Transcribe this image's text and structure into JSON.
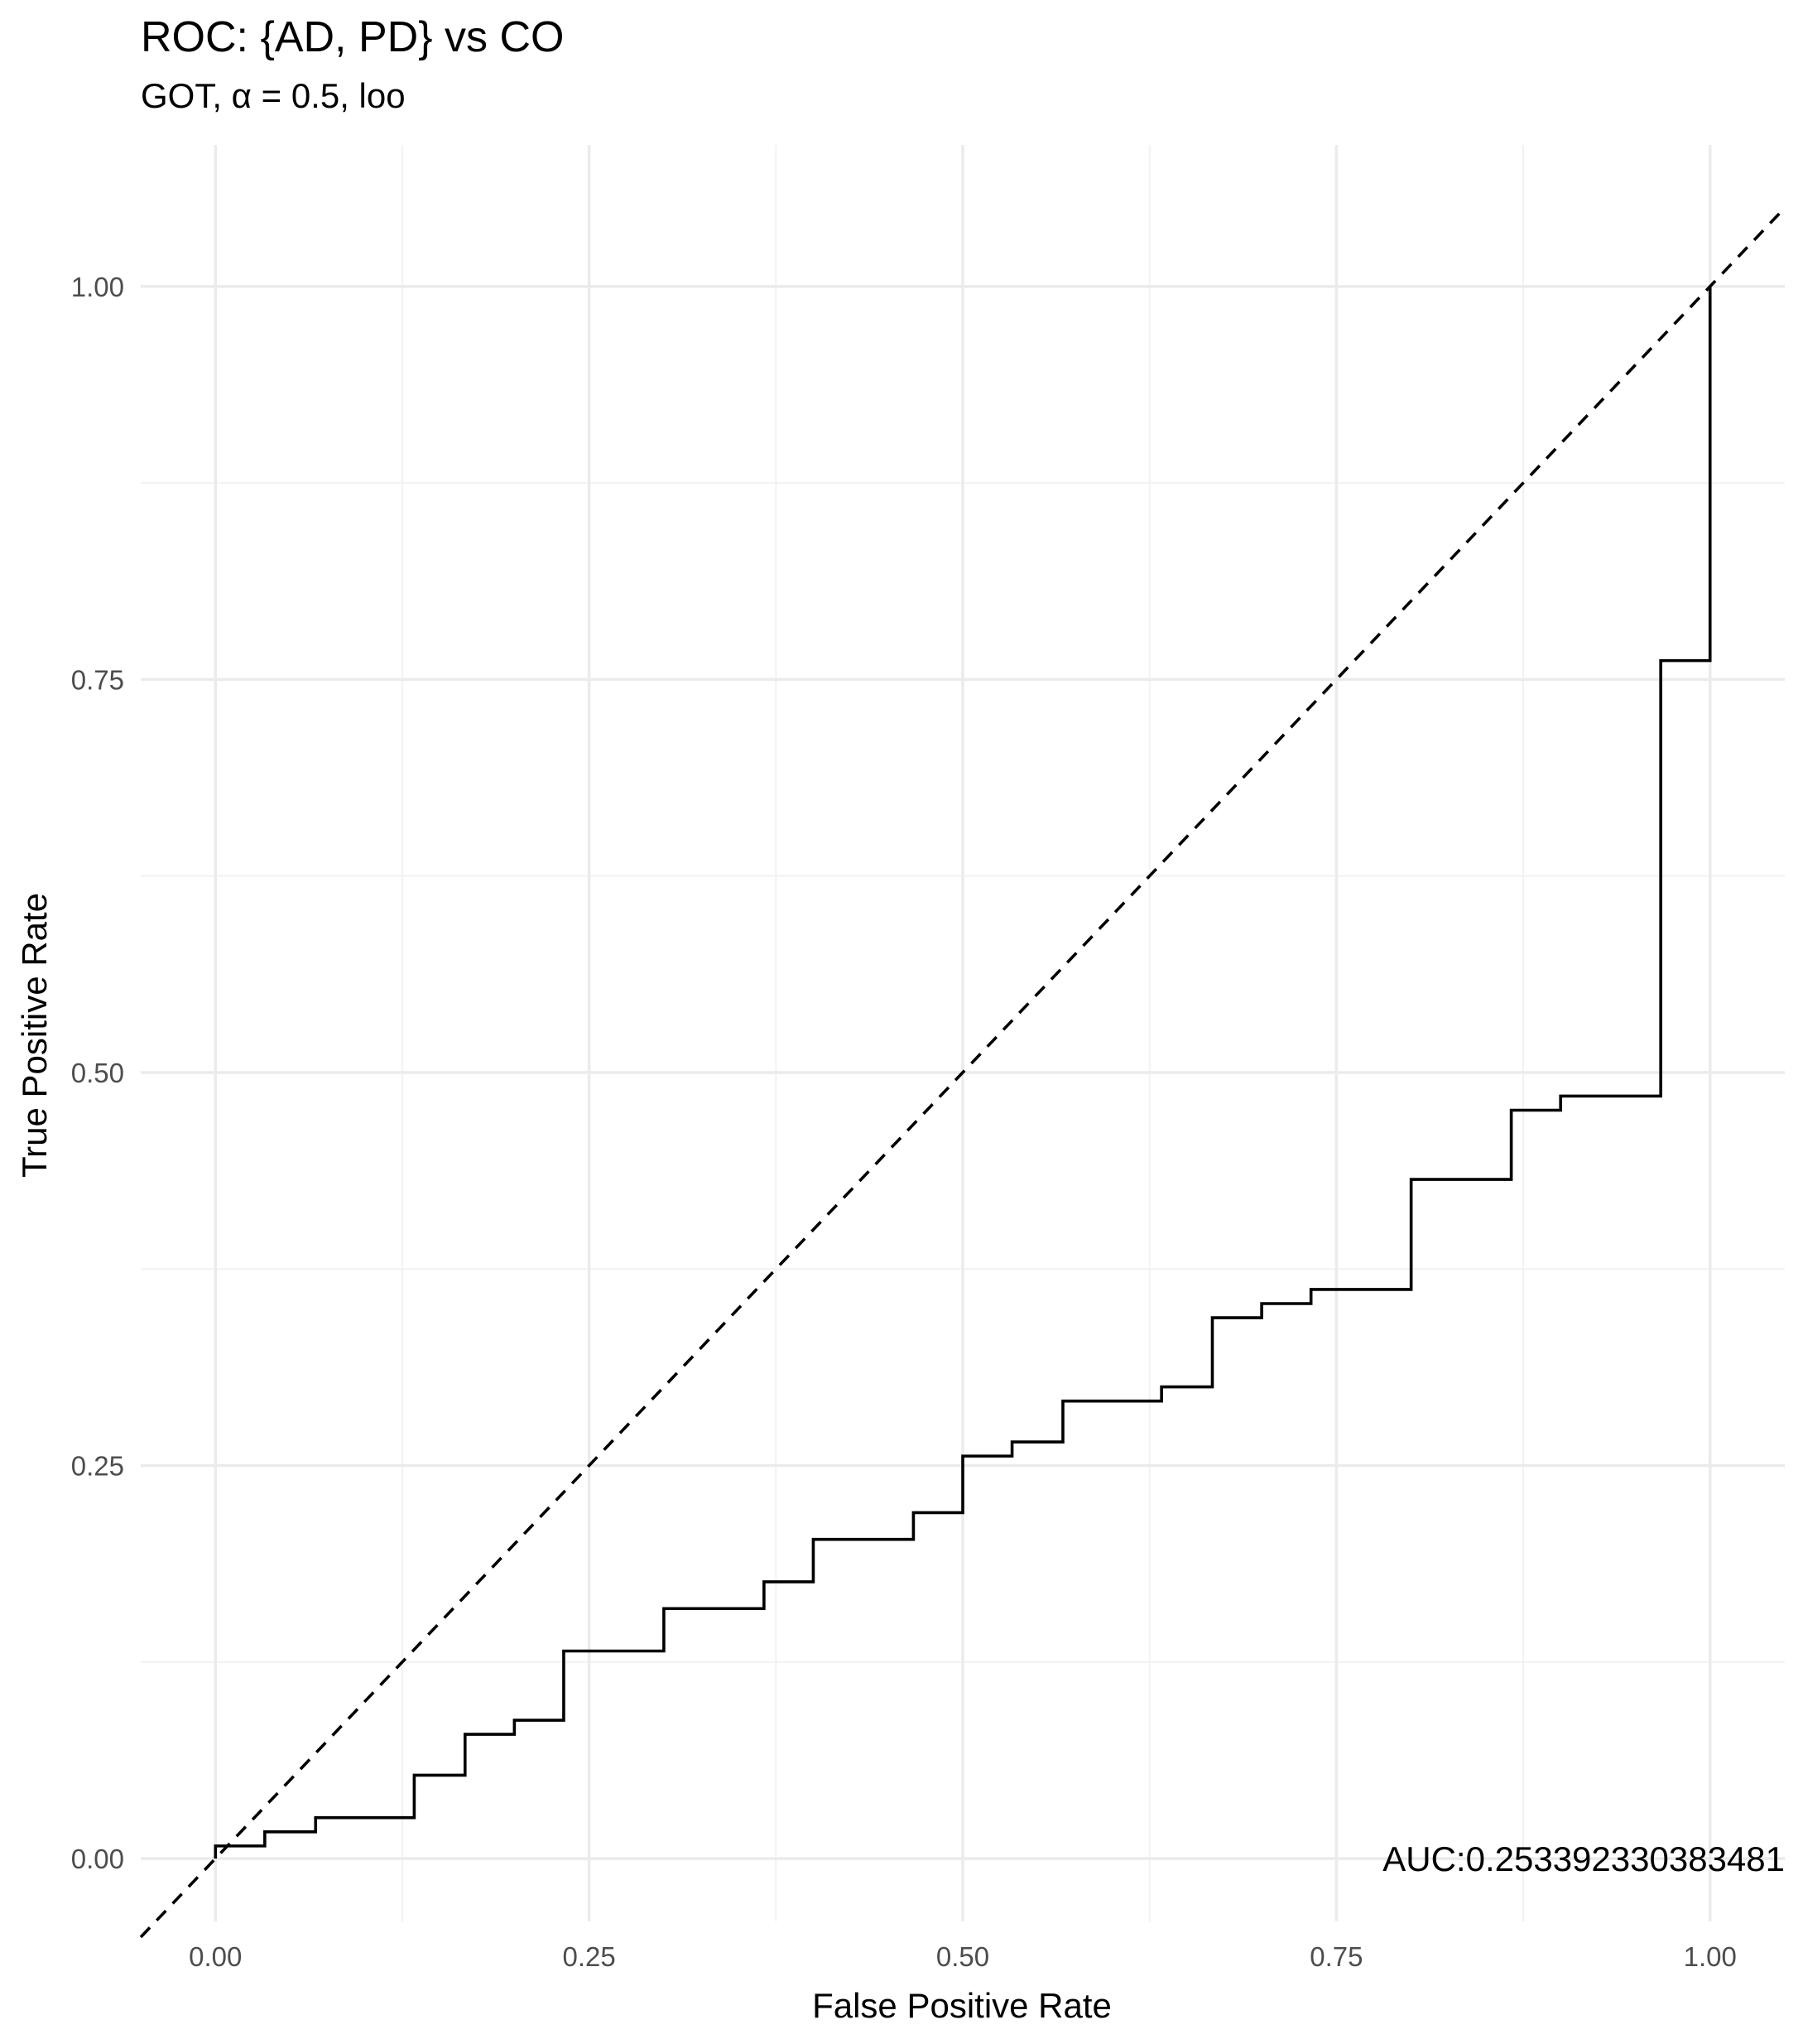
{
  "chart_data": {
    "type": "line",
    "title": "ROC: {AD, PD} vs CO",
    "subtitle": "GOT, α = 0.5, loo",
    "xlabel": "False Positive Rate",
    "ylabel": "True Positive Rate",
    "xlim": [
      -0.05,
      1.05
    ],
    "ylim": [
      -0.04,
      1.09
    ],
    "x_ticks": [
      0.0,
      0.25,
      0.5,
      0.75,
      1.0
    ],
    "y_ticks": [
      0.0,
      0.25,
      0.5,
      0.75,
      1.0
    ],
    "x_tick_labels": [
      "0.00",
      "0.25",
      "0.50",
      "0.75",
      "1.00"
    ],
    "y_tick_labels": [
      "0.00",
      "0.25",
      "0.50",
      "0.75",
      "1.00"
    ],
    "grid": true,
    "legend": "none",
    "series": [
      {
        "style": "solid",
        "color": "#000000",
        "shape": "step",
        "points": [
          [
            0.0,
            0.0
          ],
          [
            0.0,
            0.008
          ],
          [
            0.033,
            0.008
          ],
          [
            0.033,
            0.017
          ],
          [
            0.067,
            0.017
          ],
          [
            0.067,
            0.026
          ],
          [
            0.133,
            0.026
          ],
          [
            0.133,
            0.053
          ],
          [
            0.167,
            0.053
          ],
          [
            0.167,
            0.079
          ],
          [
            0.2,
            0.079
          ],
          [
            0.2,
            0.088
          ],
          [
            0.233,
            0.088
          ],
          [
            0.233,
            0.132
          ],
          [
            0.3,
            0.132
          ],
          [
            0.3,
            0.159
          ],
          [
            0.367,
            0.159
          ],
          [
            0.367,
            0.176
          ],
          [
            0.4,
            0.176
          ],
          [
            0.4,
            0.203
          ],
          [
            0.467,
            0.203
          ],
          [
            0.467,
            0.22
          ],
          [
            0.5,
            0.22
          ],
          [
            0.5,
            0.256
          ],
          [
            0.533,
            0.256
          ],
          [
            0.533,
            0.265
          ],
          [
            0.567,
            0.265
          ],
          [
            0.567,
            0.291
          ],
          [
            0.633,
            0.291
          ],
          [
            0.633,
            0.3
          ],
          [
            0.667,
            0.3
          ],
          [
            0.667,
            0.344
          ],
          [
            0.7,
            0.344
          ],
          [
            0.7,
            0.353
          ],
          [
            0.733,
            0.353
          ],
          [
            0.733,
            0.362
          ],
          [
            0.8,
            0.362
          ],
          [
            0.8,
            0.432
          ],
          [
            0.867,
            0.432
          ],
          [
            0.867,
            0.476
          ],
          [
            0.9,
            0.476
          ],
          [
            0.9,
            0.485
          ],
          [
            0.967,
            0.485
          ],
          [
            0.967,
            0.762
          ],
          [
            1.0,
            0.762
          ],
          [
            1.0,
            1.0
          ]
        ]
      },
      {
        "style": "dashed",
        "color": "#000000",
        "shape": "diagonal",
        "points": [
          [
            -0.05,
            -0.05
          ],
          [
            1.05,
            1.05
          ]
        ]
      }
    ],
    "annotations": [
      {
        "text": "AUC:0.253392330383481",
        "x": 1.05,
        "y": 0.0
      }
    ]
  }
}
